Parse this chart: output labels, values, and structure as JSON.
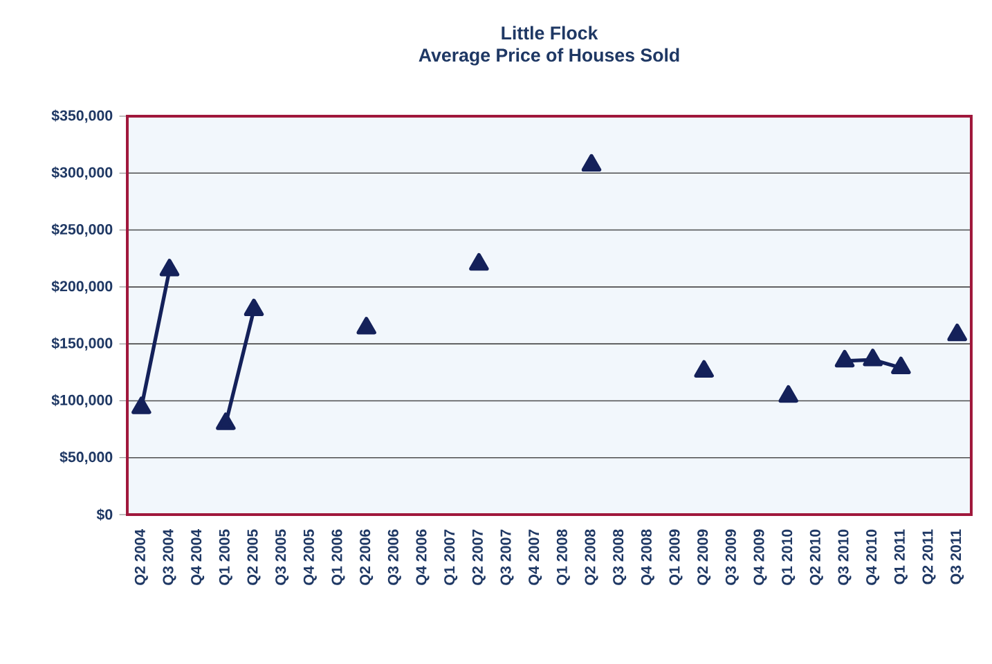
{
  "chart_data": {
    "type": "line",
    "title": "Little Flock",
    "subtitle": "Average Price of Houses Sold",
    "categories": [
      "Q2 2004",
      "Q3 2004",
      "Q4 2004",
      "Q1 2005",
      "Q2 2005",
      "Q3 2005",
      "Q4 2005",
      "Q1 2006",
      "Q2 2006",
      "Q3 2006",
      "Q4 2006",
      "Q1 2007",
      "Q2 2007",
      "Q3 2007",
      "Q4 2007",
      "Q1 2008",
      "Q2 2008",
      "Q3 2008",
      "Q4 2008",
      "Q1 2009",
      "Q2 2009",
      "Q3 2009",
      "Q4 2009",
      "Q1 2010",
      "Q2 2010",
      "Q3 2010",
      "Q4 2010",
      "Q1 2011",
      "Q2 2011",
      "Q3 2011"
    ],
    "series": [
      {
        "color": "#14215a",
        "values": [
          94000,
          215000,
          null,
          80000,
          180000,
          null,
          null,
          null,
          164000,
          null,
          null,
          null,
          220000,
          null,
          null,
          null,
          307000,
          null,
          null,
          null,
          126000,
          null,
          null,
          104000,
          null,
          135000,
          136000,
          129000,
          null,
          158000
        ]
      }
    ],
    "ylim": [
      0,
      350000
    ],
    "yticks": [
      {
        "value": 0,
        "label": "$0"
      },
      {
        "value": 50000,
        "label": "$50,000"
      },
      {
        "value": 100000,
        "label": "$100,000"
      },
      {
        "value": 150000,
        "label": "$150,000"
      },
      {
        "value": 200000,
        "label": "$200,000"
      },
      {
        "value": 250000,
        "label": "$250,000"
      },
      {
        "value": 300000,
        "label": "$300,000"
      },
      {
        "value": 350000,
        "label": "$350,000"
      }
    ],
    "grid": "y",
    "marker": "triangle",
    "line_style": "solid"
  }
}
